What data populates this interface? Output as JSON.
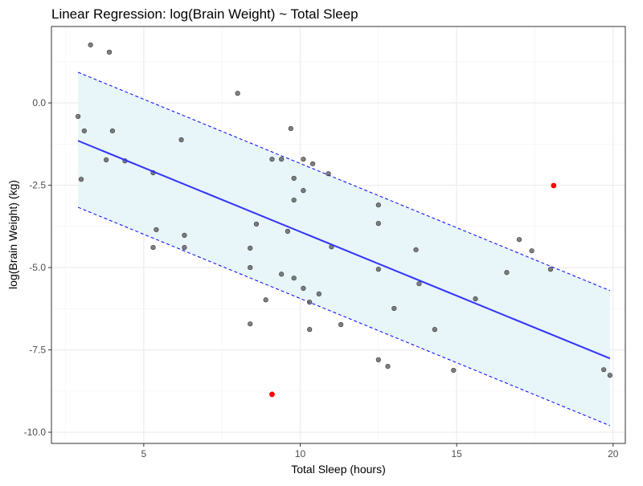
{
  "chart_data": {
    "type": "scatter",
    "title": "Linear Regression: log(Brain Weight) ~ Total Sleep",
    "xlabel": "Total Sleep (hours)",
    "ylabel": "log(Brain Weight) (kg)",
    "xlim": [
      2.05,
      20.39
    ],
    "ylim": [
      -10.34,
      2.32
    ],
    "xticks": [
      5,
      10,
      15,
      20
    ],
    "xtick_labels": [
      "5",
      "10",
      "15",
      "20"
    ],
    "yticks": [
      0,
      -2.5,
      -5,
      -7.5,
      -10
    ],
    "ytick_labels": [
      "0.0",
      "-2.5",
      "-5.0",
      "-7.5",
      "-10.0"
    ],
    "grid": true,
    "colors": {
      "points": "#555555",
      "outliers": "#ff0000",
      "fit": "#3333ff",
      "band": "#e6f4f8",
      "band_edge": "#0000ff"
    },
    "fit_line": {
      "x": [
        2.9,
        19.9
      ],
      "y": [
        -1.15,
        -7.76
      ]
    },
    "prediction_band": {
      "x": [
        2.9,
        19.9
      ],
      "upper": [
        0.93,
        -5.7
      ],
      "lower": [
        -3.17,
        -9.8
      ]
    },
    "points": [
      [
        2.9,
        -0.41
      ],
      [
        3.1,
        -0.85
      ],
      [
        3.0,
        -2.32
      ],
      [
        3.3,
        1.76
      ],
      [
        3.9,
        1.54
      ],
      [
        3.8,
        -1.73
      ],
      [
        4.0,
        -0.85
      ],
      [
        4.4,
        -1.76
      ],
      [
        5.3,
        -2.12
      ],
      [
        5.4,
        -3.85
      ],
      [
        5.3,
        -4.39
      ],
      [
        6.2,
        -1.12
      ],
      [
        6.3,
        -4.02
      ],
      [
        6.3,
        -4.39
      ],
      [
        8.0,
        0.29
      ],
      [
        8.4,
        -5.0
      ],
      [
        8.4,
        -4.41
      ],
      [
        8.4,
        -6.71
      ],
      [
        8.6,
        -3.68
      ],
      [
        8.9,
        -5.98
      ],
      [
        9.1,
        -1.71
      ],
      [
        9.4,
        -1.71
      ],
      [
        9.4,
        -5.2
      ],
      [
        9.7,
        -0.78
      ],
      [
        9.6,
        -3.9
      ],
      [
        9.8,
        -2.29
      ],
      [
        9.8,
        -2.95
      ],
      [
        9.8,
        -5.32
      ],
      [
        10.1,
        -2.66
      ],
      [
        10.1,
        -1.71
      ],
      [
        10.1,
        -5.63
      ],
      [
        10.4,
        -1.85
      ],
      [
        10.3,
        -6.05
      ],
      [
        10.3,
        -6.88
      ],
      [
        10.6,
        -5.8
      ],
      [
        10.9,
        -2.15
      ],
      [
        11.0,
        -4.37
      ],
      [
        11.3,
        -6.73
      ],
      [
        12.5,
        -3.1
      ],
      [
        12.5,
        -3.66
      ],
      [
        12.5,
        -5.05
      ],
      [
        12.5,
        -7.8
      ],
      [
        12.8,
        -8.0
      ],
      [
        13.0,
        -6.24
      ],
      [
        13.7,
        -4.46
      ],
      [
        13.8,
        -5.49
      ],
      [
        14.3,
        -6.88
      ],
      [
        14.9,
        -8.12
      ],
      [
        15.6,
        -5.95
      ],
      [
        16.6,
        -5.15
      ],
      [
        17.0,
        -4.15
      ],
      [
        17.4,
        -4.49
      ],
      [
        18.0,
        -5.05
      ],
      [
        19.7,
        -8.1
      ],
      [
        19.9,
        -8.27
      ]
    ],
    "outliers": [
      [
        18.1,
        -2.51
      ],
      [
        9.1,
        -8.85
      ]
    ]
  }
}
